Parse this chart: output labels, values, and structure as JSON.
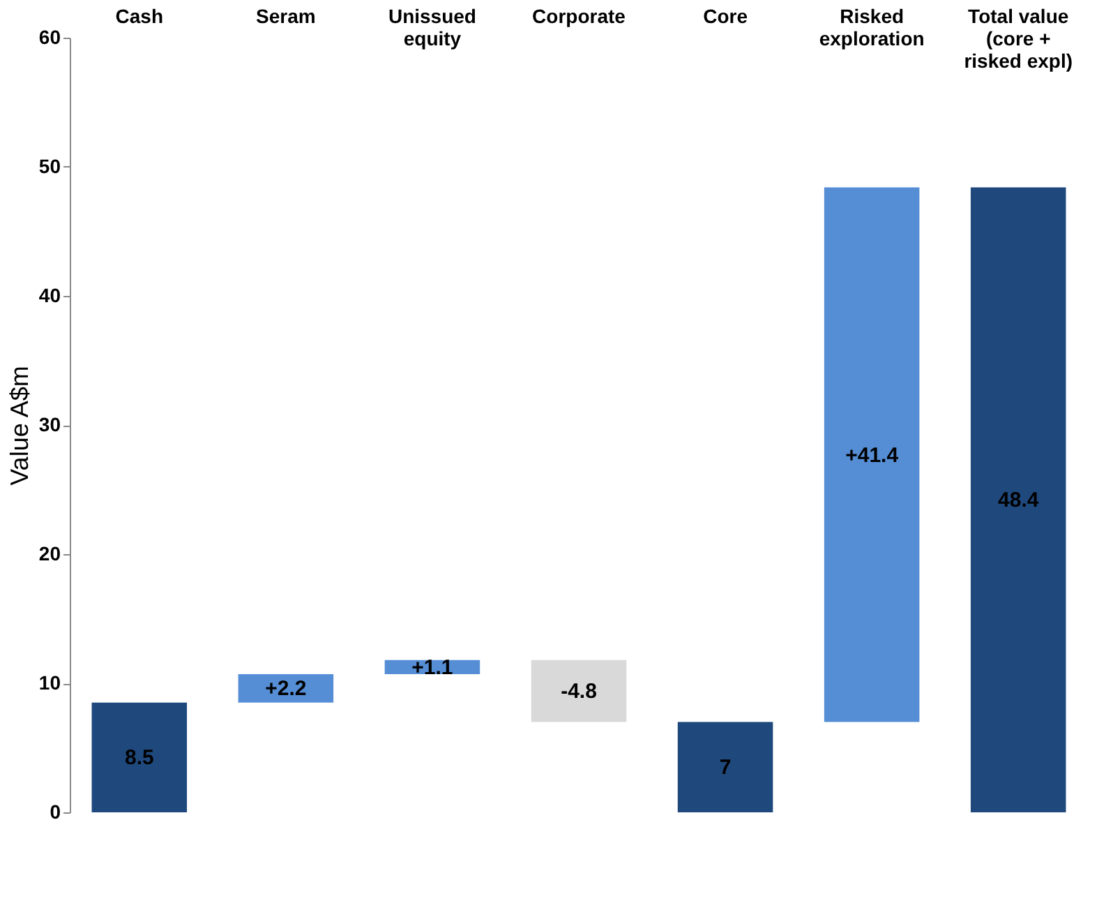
{
  "chart_data": {
    "type": "bar",
    "ylabel": "Value A$m",
    "categories": [
      "Cash",
      "Seram",
      "Unissued equity",
      "Corporate",
      "Core",
      "Risked exploration",
      "Total value (core + risked expl)"
    ],
    "values": [
      8.5,
      2.2,
      1.1,
      -4.8,
      7,
      41.4,
      48.4
    ],
    "base": [
      0,
      8.5,
      10.7,
      11.8,
      0,
      7,
      0
    ],
    "colors": [
      "#1f497d",
      "#558ed5",
      "#558ed5",
      "#d9d9d9",
      "#1f497d",
      "#558ed5",
      "#1f497d"
    ],
    "value_labels": [
      "8.5",
      "+2.2",
      "+1.1",
      "-4.8",
      "7",
      "+41.4",
      "48.4"
    ],
    "ylim": [
      0,
      60
    ],
    "yticks": [
      0,
      10,
      20,
      30,
      40,
      50,
      60
    ],
    "grid": false
  }
}
